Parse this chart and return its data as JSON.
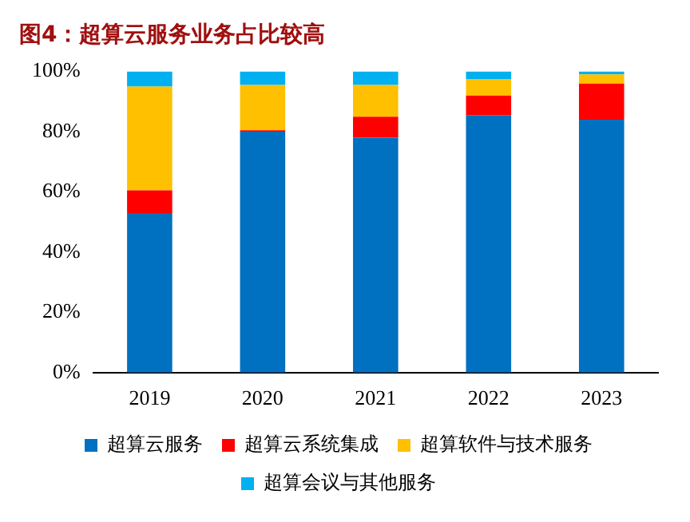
{
  "chart_data": {
    "type": "bar",
    "title": "图4：超算云服务业务占比较高",
    "categories": [
      "2019",
      "2020",
      "2021",
      "2022",
      "2023"
    ],
    "stacked": true,
    "ylim": [
      0,
      100
    ],
    "yticks": [
      {
        "value": 0,
        "label": "0%"
      },
      {
        "value": 20,
        "label": "20%"
      },
      {
        "value": 40,
        "label": "40%"
      },
      {
        "value": 60,
        "label": "60%"
      },
      {
        "value": 80,
        "label": "80%"
      },
      {
        "value": 100,
        "label": "100%"
      }
    ],
    "grid": false,
    "legend": "bottom",
    "series": [
      {
        "name": "超算云服务",
        "color": "#0070c0",
        "values": [
          53,
          80,
          78,
          85.5,
          84
        ]
      },
      {
        "name": "超算云系统集成",
        "color": "#ff0000",
        "values": [
          7.5,
          0.5,
          7,
          6.5,
          12
        ]
      },
      {
        "name": "超算软件与技术服务",
        "color": "#ffc000",
        "values": [
          34.5,
          15,
          10.5,
          5.5,
          3
        ]
      },
      {
        "name": "超算会议与其他服务",
        "color": "#00b0f0",
        "values": [
          5,
          4.5,
          4.5,
          2.5,
          1
        ]
      }
    ]
  }
}
